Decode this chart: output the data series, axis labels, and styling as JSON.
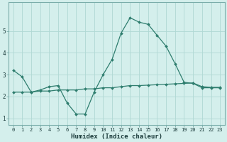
{
  "xlabel": "Humidex (Indice chaleur)",
  "x": [
    0,
    1,
    2,
    3,
    4,
    5,
    6,
    7,
    8,
    9,
    10,
    11,
    12,
    13,
    14,
    15,
    16,
    17,
    18,
    19,
    20,
    21,
    22,
    23
  ],
  "line1": [
    3.2,
    2.9,
    2.2,
    2.3,
    2.45,
    2.5,
    1.7,
    1.2,
    1.2,
    2.2,
    3.0,
    3.7,
    4.9,
    5.6,
    5.4,
    5.3,
    4.8,
    4.3,
    3.5,
    2.65,
    2.6,
    2.4,
    2.4,
    2.4
  ],
  "line2": [
    2.2,
    2.2,
    2.2,
    2.25,
    2.25,
    2.3,
    2.3,
    2.3,
    2.35,
    2.35,
    2.4,
    2.4,
    2.45,
    2.5,
    2.5,
    2.52,
    2.54,
    2.56,
    2.58,
    2.6,
    2.62,
    2.45,
    2.42,
    2.42
  ],
  "line_color": "#2e7d6e",
  "bg_color": "#d4efec",
  "grid_color": "#b0d8d4",
  "ylim": [
    0.7,
    6.3
  ],
  "yticks": [
    1,
    2,
    3,
    4,
    5
  ],
  "xlim": [
    -0.5,
    23.5
  ],
  "marker_size": 2.0,
  "xlabel_fontsize": 6.5,
  "tick_fontsize": 5.0
}
